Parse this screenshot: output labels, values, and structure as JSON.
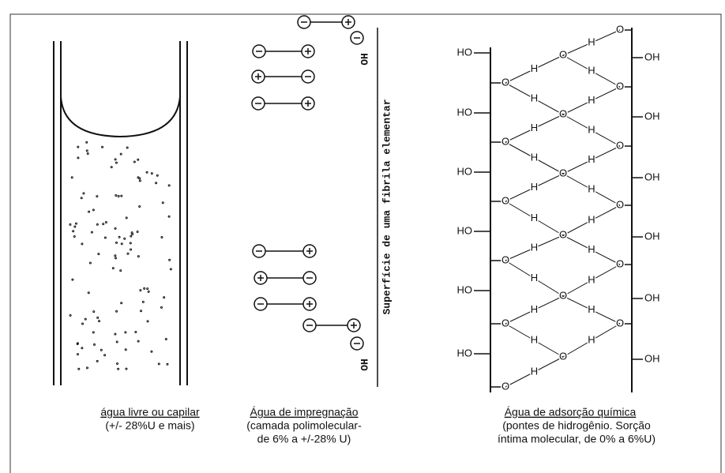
{
  "free_water": {
    "caption": "água livre ou capilar",
    "detail": "(+/- 28%U e mais)"
  },
  "impregnation": {
    "surface_label": "Superfície de uma fibrila elementar",
    "hydroxyls": [
      "OH",
      "OH"
    ],
    "caption": "Água de impregnação",
    "detail": [
      "(camada polimolecular-",
      "de 6% a +/-28% U)"
    ]
  },
  "adsorption": {
    "left_hydroxyls": [
      "HO",
      "HO",
      "HO",
      "HO",
      "HO",
      "HO"
    ],
    "right_hydroxyls": [
      "OH",
      "OH",
      "OH",
      "OH",
      "OH",
      "OH"
    ],
    "left_oxygens": [
      "O",
      "O",
      "O",
      "O",
      "O",
      "O"
    ],
    "center_oxygens": [
      "O",
      "O",
      "O",
      "O",
      "O",
      "O"
    ],
    "right_oxygens": [
      "O",
      "O",
      "O",
      "O",
      "O",
      "O"
    ],
    "hydrogens": [
      "H",
      "H",
      "H",
      "H",
      "H",
      "H",
      "H",
      "H",
      "H",
      "H",
      "H",
      "H",
      "H",
      "H",
      "H",
      "H",
      "H",
      "H",
      "H",
      "H",
      "H",
      "H"
    ],
    "caption": "Água de adsorção química",
    "detail": [
      "(pontes de hidrogênio. Sorção",
      "íntima molecular, de 0% a 6%U)"
    ]
  }
}
